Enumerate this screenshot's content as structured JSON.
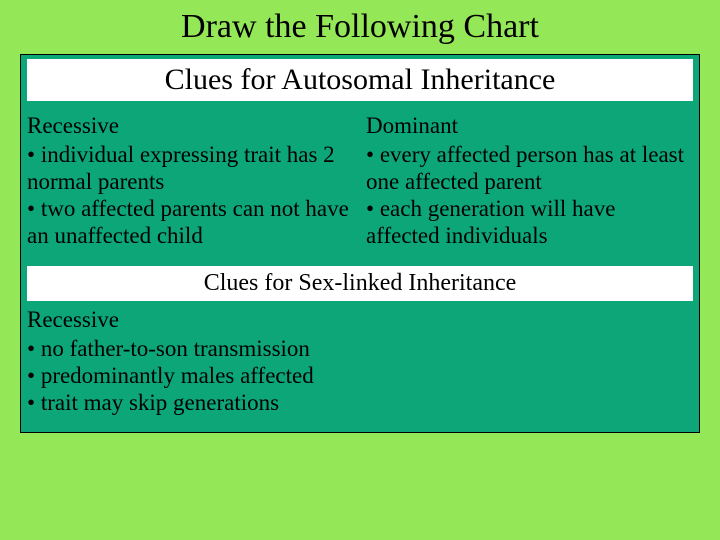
{
  "colors": {
    "slide_background": "#94e757",
    "chart_background": "#0ca678",
    "title_cell_background": "#ffffff",
    "text_color": "#000000",
    "border_color": "#000000"
  },
  "typography": {
    "font_family": "Times New Roman",
    "main_title_fontsize": 34,
    "section_title_fontsize": 30,
    "section_title2_fontsize": 24,
    "body_fontsize": 23
  },
  "main_title": "Draw the Following Chart",
  "sections": [
    {
      "title": "Clues for Autosomal Inheritance",
      "columns": [
        {
          "heading": "Recessive",
          "bullets": [
            "individual expressing trait has 2 normal parents",
            "two affected parents can not have an unaffected child"
          ]
        },
        {
          "heading": "Dominant",
          "bullets": [
            "every affected person has at least one affected parent",
            "each generation will have affected individuals"
          ]
        }
      ]
    },
    {
      "title": "Clues for Sex-linked Inheritance",
      "columns": [
        {
          "heading": "Recessive",
          "bullets": [
            "no father-to-son transmission",
            "predominantly males affected",
            "trait may skip generations"
          ]
        },
        {
          "heading": "",
          "bullets": []
        }
      ]
    }
  ]
}
